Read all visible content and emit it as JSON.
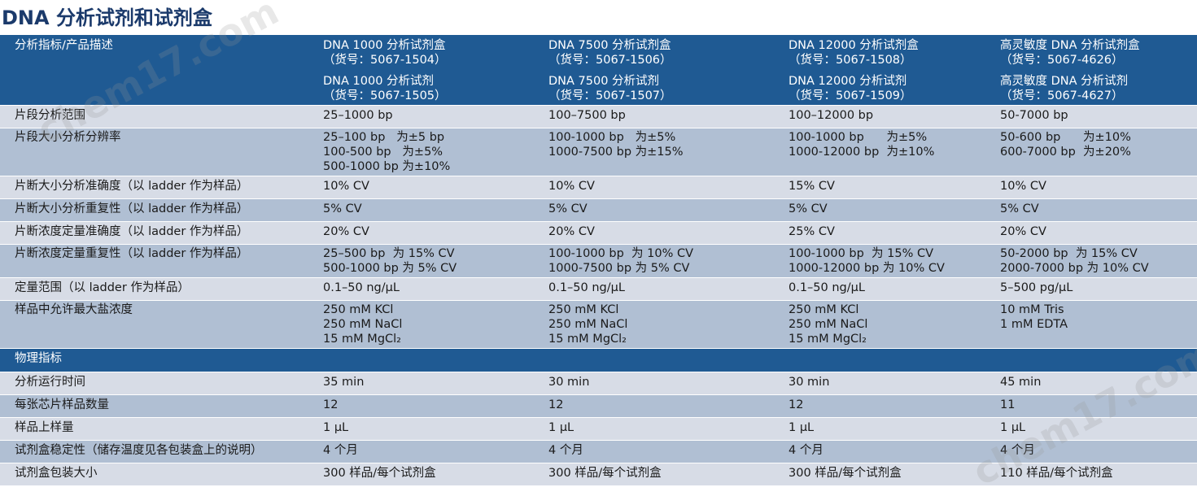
{
  "title": "DNA 分析试剂和试剂盒",
  "header": {
    "col0": "分析指标/产品描述",
    "products": [
      {
        "kit": "DNA 1000 分析试剂盒",
        "kit_no": "（货号：5067-1504）",
        "reagent": "DNA 1000 分析试剂",
        "reagent_no": "（货号：5067-1505）"
      },
      {
        "kit": "DNA 7500 分析试剂盒",
        "kit_no": "（货号：5067-1506）",
        "reagent": "DNA 7500 分析试剂",
        "reagent_no": "（货号：5067-1507）"
      },
      {
        "kit": "DNA 12000 分析试剂盒",
        "kit_no": "（货号：5067-1508）",
        "reagent": "DNA 12000 分析试剂",
        "reagent_no": "（货号：5067-1509）"
      },
      {
        "kit": "高灵敏度 DNA 分析试剂盒",
        "kit_no": "（货号：5067-4626）",
        "reagent": "高灵敏度 DNA 分析试剂",
        "reagent_no": "（货号：5067-4627）"
      }
    ]
  },
  "rows": [
    {
      "label": "片段分析范围",
      "cells": [
        [
          "25–1000 bp"
        ],
        [
          "100–7500 bp"
        ],
        [
          "100–12000 bp"
        ],
        [
          "50-7000 bp"
        ]
      ]
    },
    {
      "label": "片段大小分析分辨率",
      "cells": [
        [
          "25–100 bp   为±5 bp",
          "100-500 bp   为±5%",
          "500-1000 bp 为±10%"
        ],
        [
          "100-1000 bp   为±5%",
          "1000-7500 bp 为±15%"
        ],
        [
          "100-1000 bp      为±5%",
          "1000-12000 bp  为±10%"
        ],
        [
          "50-600 bp      为±10%",
          "600-7000 bp  为±20%"
        ]
      ]
    },
    {
      "label": "片断大小分析准确度（以 ladder 作为样品）",
      "cells": [
        [
          "10% CV"
        ],
        [
          "10% CV"
        ],
        [
          "15% CV"
        ],
        [
          "10% CV"
        ]
      ]
    },
    {
      "label": "片断大小分析重复性（以 ladder 作为样品）",
      "cells": [
        [
          "5% CV"
        ],
        [
          "5% CV"
        ],
        [
          "5% CV"
        ],
        [
          "5% CV"
        ]
      ]
    },
    {
      "label": "片断浓度定量准确度（以 ladder 作为样品）",
      "cells": [
        [
          "20% CV"
        ],
        [
          "20% CV"
        ],
        [
          "25% CV"
        ],
        [
          "20% CV"
        ]
      ]
    },
    {
      "label": "片断浓度定量重复性（以 ladder 作为样品）",
      "cells": [
        [
          "25–500 bp  为 15% CV",
          "500-1000 bp 为 5% CV"
        ],
        [
          "100-1000 bp  为 10% CV",
          "1000-7500 bp 为 5% CV"
        ],
        [
          "100-1000 bp  为 15% CV",
          "1000-12000 bp 为 10% CV"
        ],
        [
          "50-2000 bp  为 15% CV",
          "2000-7000 bp 为 10% CV"
        ]
      ]
    },
    {
      "label": "定量范围（以 ladder 作为样品）",
      "cells": [
        [
          "0.1–50 ng/μL"
        ],
        [
          "0.1–50 ng/μL"
        ],
        [
          "0.1–50 ng/μL"
        ],
        [
          "5–500 pg/μL"
        ]
      ]
    },
    {
      "label": "样品中允许最大盐浓度",
      "cells": [
        [
          "250 mM KCl",
          "250 mM NaCl",
          "15 mM MgCl₂"
        ],
        [
          "250 mM KCl",
          "250 mM NaCl",
          "15 mM MgCl₂"
        ],
        [
          "250 mM KCl",
          "250 mM NaCl",
          "15 mM MgCl₂"
        ],
        [
          "10 mM Tris",
          "1 mM EDTA"
        ]
      ]
    }
  ],
  "section2": "物理指标",
  "rows2": [
    {
      "label": "分析运行时间",
      "cells": [
        [
          "35 min"
        ],
        [
          "30 min"
        ],
        [
          "30 min"
        ],
        [
          "45 min"
        ]
      ]
    },
    {
      "label": "每张芯片样品数量",
      "cells": [
        [
          "12"
        ],
        [
          "12"
        ],
        [
          "12"
        ],
        [
          "11"
        ]
      ]
    },
    {
      "label": "样品上样量",
      "cells": [
        [
          "1 μL"
        ],
        [
          "1 μL"
        ],
        [
          "1 μL"
        ],
        [
          "1 μL"
        ]
      ]
    },
    {
      "label": "试剂盒稳定性（储存温度见各包装盒上的说明）",
      "cells": [
        [
          "4 个月"
        ],
        [
          "4 个月"
        ],
        [
          "4 个月"
        ],
        [
          "4 个月"
        ]
      ]
    },
    {
      "label": "试剂盒包装大小",
      "cells": [
        [
          "300 样品/每个试剂盒"
        ],
        [
          "300 样品/每个试剂盒"
        ],
        [
          "300 样品/每个试剂盒"
        ],
        [
          "110 样品/每个试剂盒"
        ]
      ]
    }
  ],
  "watermark": "chem17.com"
}
